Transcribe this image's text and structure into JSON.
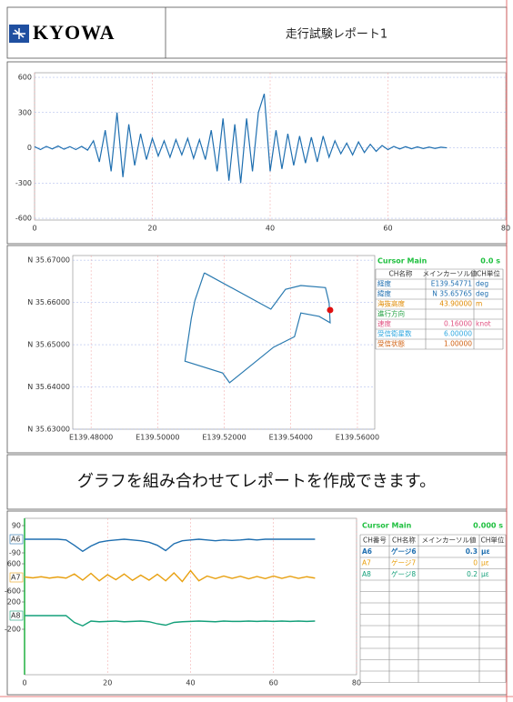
{
  "header": {
    "logo": "KYOWA",
    "title": "走行試験レポート1"
  },
  "caption": "グラフを組み合わせてレポートを作成できます。",
  "chart_data": [
    {
      "type": "line",
      "grid": true,
      "x": [
        0,
        1,
        2,
        3,
        4,
        5,
        6,
        7,
        8,
        9,
        10,
        11,
        12,
        13,
        14,
        15,
        16,
        17,
        18,
        19,
        20,
        21,
        22,
        23,
        24,
        25,
        26,
        27,
        28,
        29,
        30,
        31,
        32,
        33,
        34,
        35,
        36,
        37,
        38,
        39,
        40,
        41,
        42,
        43,
        44,
        45,
        46,
        47,
        48,
        49,
        50,
        51,
        52,
        53,
        54,
        55,
        56,
        57,
        58,
        59,
        60,
        61,
        62,
        63,
        64,
        65,
        66,
        67,
        68,
        69,
        70
      ],
      "series": [
        {
          "color": "#1f6fb0",
          "values": [
            10,
            -15,
            12,
            -10,
            15,
            -12,
            10,
            -15,
            12,
            -20,
            60,
            -120,
            150,
            -200,
            300,
            -250,
            200,
            -150,
            120,
            -100,
            80,
            -70,
            60,
            -80,
            70,
            -60,
            80,
            -90,
            70,
            -100,
            150,
            -200,
            250,
            -280,
            200,
            -300,
            250,
            -200,
            300,
            460,
            -200,
            150,
            -180,
            120,
            -150,
            100,
            -130,
            90,
            -120,
            100,
            -80,
            60,
            -50,
            40,
            -60,
            50,
            -40,
            30,
            -30,
            20,
            -15,
            12,
            -10,
            10,
            -8,
            8,
            -6,
            6,
            -5,
            5,
            0
          ]
        }
      ],
      "xlim": [
        0,
        80
      ],
      "xticks": [
        0,
        20,
        40,
        60,
        80
      ],
      "ylim": [
        -615,
        639
      ],
      "yticks": [
        600,
        300,
        0,
        -300,
        -600
      ]
    },
    {
      "type": "line",
      "grid": true,
      "series": [
        {
          "color": "#2a7ab0",
          "x": [
            139.514,
            139.534,
            139.5384,
            139.543,
            139.5504,
            139.5515,
            139.5518,
            139.5485,
            139.543,
            139.5411,
            139.5348,
            139.5216,
            139.5195,
            139.5082,
            139.5101,
            139.5112,
            139.514
          ],
          "values": [
            35.667,
            35.6584,
            35.6631,
            35.664,
            35.6635,
            35.6599,
            35.6552,
            35.6567,
            35.6575,
            35.6519,
            35.6494,
            35.641,
            35.6433,
            35.6461,
            35.6562,
            35.6605,
            35.667
          ]
        }
      ],
      "cursor": {
        "x": 139.5518,
        "y": 35.6582,
        "color": "#e01010"
      },
      "xlim": [
        139.4745,
        139.5652
      ],
      "xticks": [
        {
          "value": 139.48,
          "label": "E139.48000"
        },
        {
          "value": 139.5,
          "label": "E139.50000"
        },
        {
          "value": 139.52,
          "label": "E139.52000"
        },
        {
          "value": 139.54,
          "label": "E139.54000"
        },
        {
          "value": 139.56,
          "label": "E139.56000"
        }
      ],
      "ylim": [
        35.63,
        35.6711
      ],
      "yticks": [
        {
          "value": 35.67,
          "label": "N 35.67000"
        },
        {
          "value": 35.66,
          "label": "N 35.66000"
        },
        {
          "value": 35.65,
          "label": "N 35.65000"
        },
        {
          "value": 35.64,
          "label": "N 35.64000"
        },
        {
          "value": 35.63,
          "label": "N 35.63000"
        }
      ]
    },
    {
      "type": "line",
      "grid": true,
      "x": [
        0,
        2,
        4,
        6,
        8,
        10,
        12,
        14,
        16,
        18,
        20,
        22,
        24,
        26,
        28,
        30,
        32,
        34,
        36,
        38,
        40,
        42,
        44,
        46,
        48,
        50,
        52,
        54,
        56,
        58,
        60,
        62,
        64,
        66,
        68,
        70
      ],
      "xlim": [
        0,
        80
      ],
      "xticks": [
        0,
        20,
        40,
        60,
        80
      ],
      "series": [
        {
          "name": "A6",
          "color": "#1f6fb0",
          "ylim": [
            -90,
            90
          ],
          "yticks": [
            90,
            -90
          ],
          "values": [
            0,
            0,
            0,
            0,
            0,
            -5,
            -40,
            -80,
            -45,
            -20,
            -10,
            -5,
            0,
            -5,
            -10,
            -20,
            -40,
            -75,
            -30,
            -10,
            -5,
            0,
            -5,
            -10,
            -5,
            -8,
            -5,
            0,
            -5,
            0,
            0,
            0,
            0,
            0,
            0,
            0
          ]
        },
        {
          "name": "A7",
          "color": "#e8a010",
          "ylim": [
            -600,
            600
          ],
          "yticks": [
            600,
            -600
          ],
          "values": [
            20,
            -20,
            30,
            -30,
            20,
            -30,
            150,
            -120,
            180,
            -150,
            120,
            -100,
            150,
            -130,
            100,
            -120,
            140,
            -150,
            200,
            -180,
            300,
            -150,
            60,
            -50,
            60,
            -40,
            50,
            -60,
            40,
            -50,
            60,
            -40,
            50,
            -40,
            30,
            -30
          ]
        },
        {
          "name": "A8",
          "color": "#14a07a",
          "ylim": [
            -200,
            200
          ],
          "yticks": [
            200,
            -200
          ],
          "values": [
            0,
            0,
            0,
            0,
            0,
            0,
            -100,
            -150,
            -80,
            -90,
            -85,
            -80,
            -90,
            -85,
            -80,
            -90,
            -120,
            -140,
            -100,
            -90,
            -85,
            -80,
            -85,
            -90,
            -80,
            -85,
            -85,
            -80,
            -85,
            -80,
            -85,
            -80,
            -85,
            -80,
            -85,
            -80
          ]
        }
      ]
    }
  ],
  "tables": [
    {
      "cursor_label": "Cursor  Main",
      "cursor_value": "0.0 s",
      "columns": [
        "CH名称",
        "メインカーソル値",
        "CH単位"
      ],
      "rows": [
        {
          "color": "#1f6fb0",
          "cells": [
            "経度",
            "E139.54771",
            "deg"
          ]
        },
        {
          "color": "#1f6fb0",
          "cells": [
            "緯度",
            "N 35.65765",
            "deg"
          ]
        },
        {
          "color": "#e08a00",
          "cells": [
            "海抜高度",
            "43.90000",
            "m"
          ]
        },
        {
          "color": "#20a040",
          "cells": [
            "進行方向",
            null,
            null
          ]
        },
        {
          "color": "#e05080",
          "cells": [
            "速度",
            "0.16000",
            "knot"
          ]
        },
        {
          "color": "#30a8e0",
          "cells": [
            "受信衛星数",
            "6.00000",
            null
          ]
        },
        {
          "color": "#d06010",
          "cells": [
            "受信状態",
            "1.00000",
            null
          ]
        }
      ]
    },
    {
      "cursor_label": "Cursor  Main",
      "cursor_value": "0.000 s",
      "columns": [
        "CH番号",
        "CH名称",
        "メインカーソル値",
        "CH単位"
      ],
      "rows": [
        {
          "color": "#1f6fb0",
          "cells": [
            "A6",
            "ゲージ6",
            "0.3",
            "με"
          ]
        },
        {
          "color": "#e8a010",
          "cells": [
            "A7",
            "ゲージ7",
            "0",
            "με"
          ]
        },
        {
          "color": "#14a07a",
          "cells": [
            "A8",
            "ゲージ8",
            "0.2",
            "με"
          ]
        }
      ]
    }
  ]
}
